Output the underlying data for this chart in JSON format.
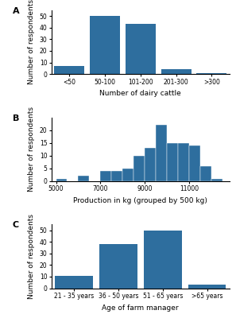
{
  "panel_A": {
    "categories": [
      "<50",
      "50-100",
      "101-200",
      "201-300",
      ">300"
    ],
    "values": [
      7,
      50,
      43,
      4,
      1
    ],
    "xlabel": "Number of dairy cattle",
    "ylabel": "Number of respondents",
    "label": "A",
    "ylim": [
      0,
      55
    ],
    "yticks": [
      0,
      10,
      20,
      30,
      40,
      50
    ]
  },
  "panel_B": {
    "bin_edges": [
      5000,
      5500,
      6000,
      6500,
      7000,
      7500,
      8000,
      8500,
      9000,
      9500,
      10000,
      10500,
      11000,
      11500,
      12000,
      12500
    ],
    "values": [
      1,
      0,
      2,
      0,
      4,
      4,
      5,
      10,
      13,
      22,
      15,
      15,
      14,
      6,
      1
    ],
    "xlabel": "Production in kg (grouped by 500 kg)",
    "ylabel": "Number of respondents",
    "label": "B",
    "ylim": [
      0,
      25
    ],
    "yticks": [
      0,
      5,
      10,
      15,
      20
    ],
    "xticks": [
      5000,
      7000,
      9000,
      11000
    ],
    "xlim": [
      4800,
      12800
    ]
  },
  "panel_C": {
    "categories": [
      "21 - 35 years",
      "36 - 50 years",
      "51 - 65 years",
      ">65 years"
    ],
    "values": [
      11,
      38,
      50,
      3
    ],
    "xlabel": "Age of farm manager",
    "ylabel": "Number of respondents",
    "label": "C",
    "ylim": [
      0,
      55
    ],
    "yticks": [
      0,
      10,
      20,
      30,
      40,
      50
    ]
  },
  "bar_color": "#2e6e9e",
  "background_color": "#ffffff",
  "tick_fontsize": 5.5,
  "axis_label_fontsize": 6.5,
  "panel_label_fontsize": 8
}
